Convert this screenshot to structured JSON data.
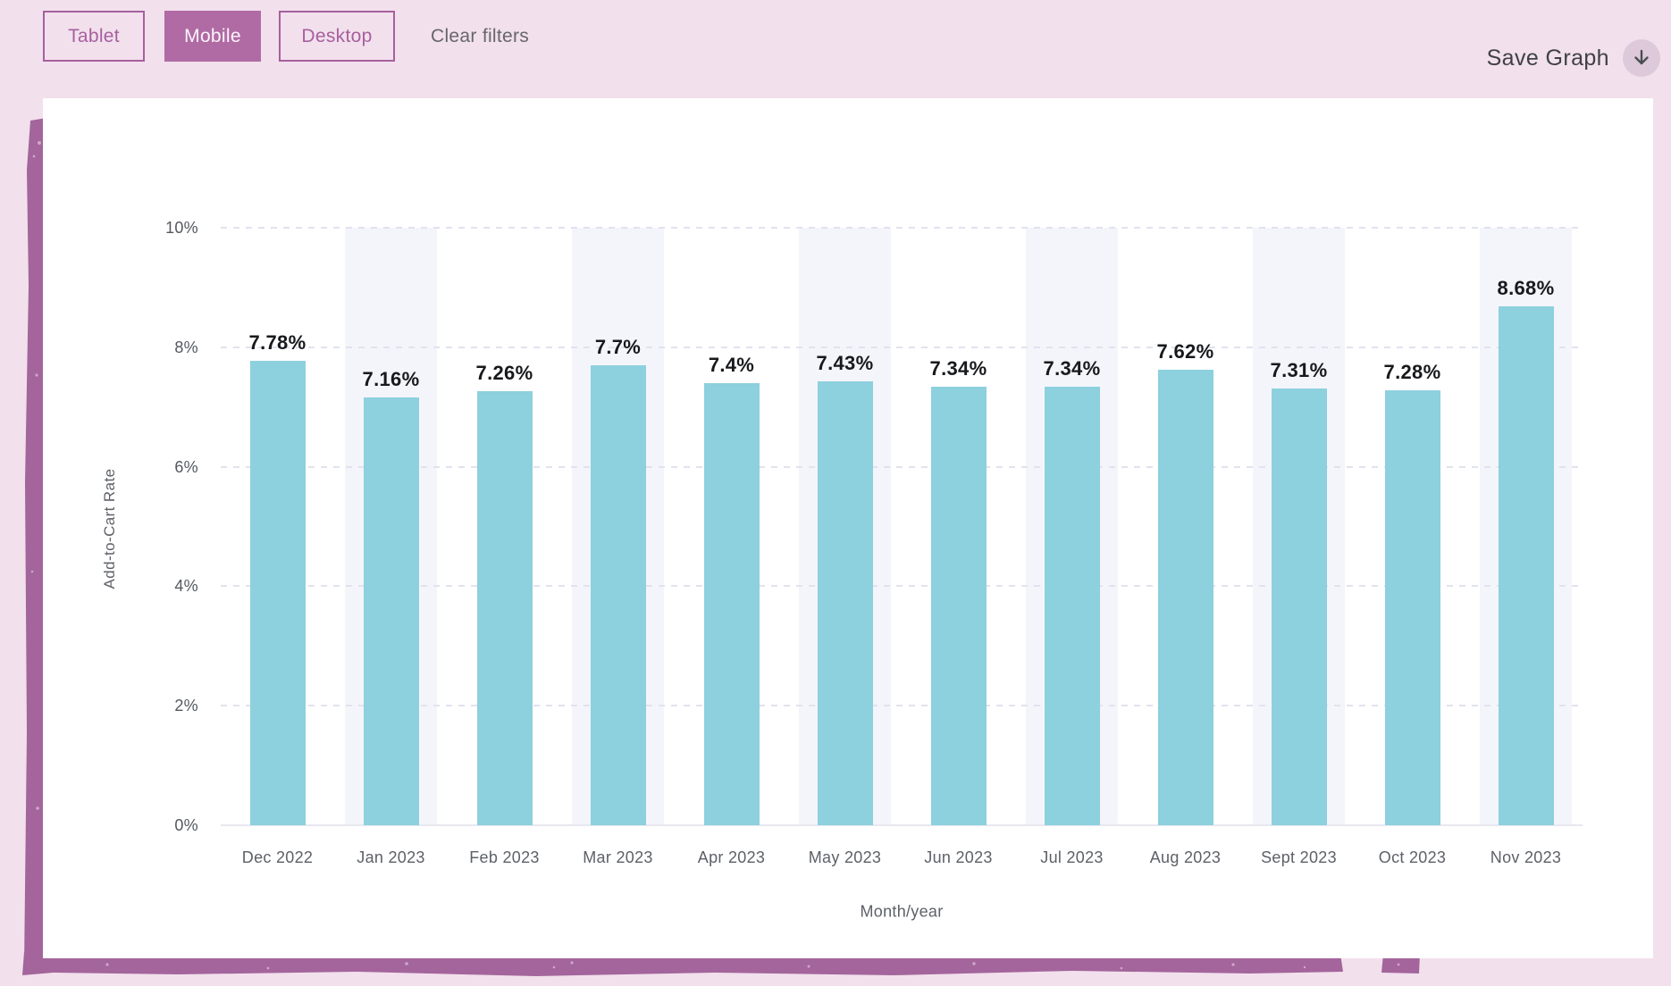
{
  "toolbar": {
    "filters": [
      {
        "label": "Tablet",
        "active": false
      },
      {
        "label": "Mobile",
        "active": true
      },
      {
        "label": "Desktop",
        "active": false
      }
    ],
    "clear_filters_label": "Clear filters",
    "save_graph_label": "Save Graph",
    "download_icon": "arrow-down-icon"
  },
  "colors": {
    "page_bg": "#f2e0ed",
    "button_outline": "#a7609e",
    "button_active_bg": "#b06ba4",
    "brush_purple": "#a3659b",
    "bar_fill": "#8dd0de",
    "band_fill": "#f4f5fb",
    "gridline": "#e2e2ee",
    "value_label_text": "#17191c",
    "axis_text": "#5d6167"
  },
  "chart_data": {
    "type": "bar",
    "title": "",
    "xlabel": "Month/year",
    "ylabel": "Add-to-Cart Rate",
    "categories": [
      "Dec 2022",
      "Jan 2023",
      "Feb 2023",
      "Mar 2023",
      "Apr 2023",
      "May 2023",
      "Jun 2023",
      "Jul 2023",
      "Aug 2023",
      "Sept 2023",
      "Oct 2023",
      "Nov 2023"
    ],
    "values": [
      7.78,
      7.16,
      7.26,
      7.7,
      7.4,
      7.43,
      7.34,
      7.34,
      7.62,
      7.31,
      7.28,
      8.68
    ],
    "value_labels": [
      "7.78%",
      "7.16%",
      "7.26%",
      "7.7%",
      "7.4%",
      "7.43%",
      "7.34%",
      "7.34%",
      "7.62%",
      "7.31%",
      "7.28%",
      "8.68%"
    ],
    "yticks": [
      0,
      2,
      4,
      6,
      8,
      10
    ],
    "ytick_labels": [
      "0%",
      "2%",
      "4%",
      "6%",
      "8%",
      "10%"
    ],
    "ylim": [
      0,
      10
    ],
    "grid": "dashed-horizontal",
    "legend": null,
    "highlight_band_columns": [
      1,
      3,
      5,
      7,
      9,
      11
    ]
  }
}
